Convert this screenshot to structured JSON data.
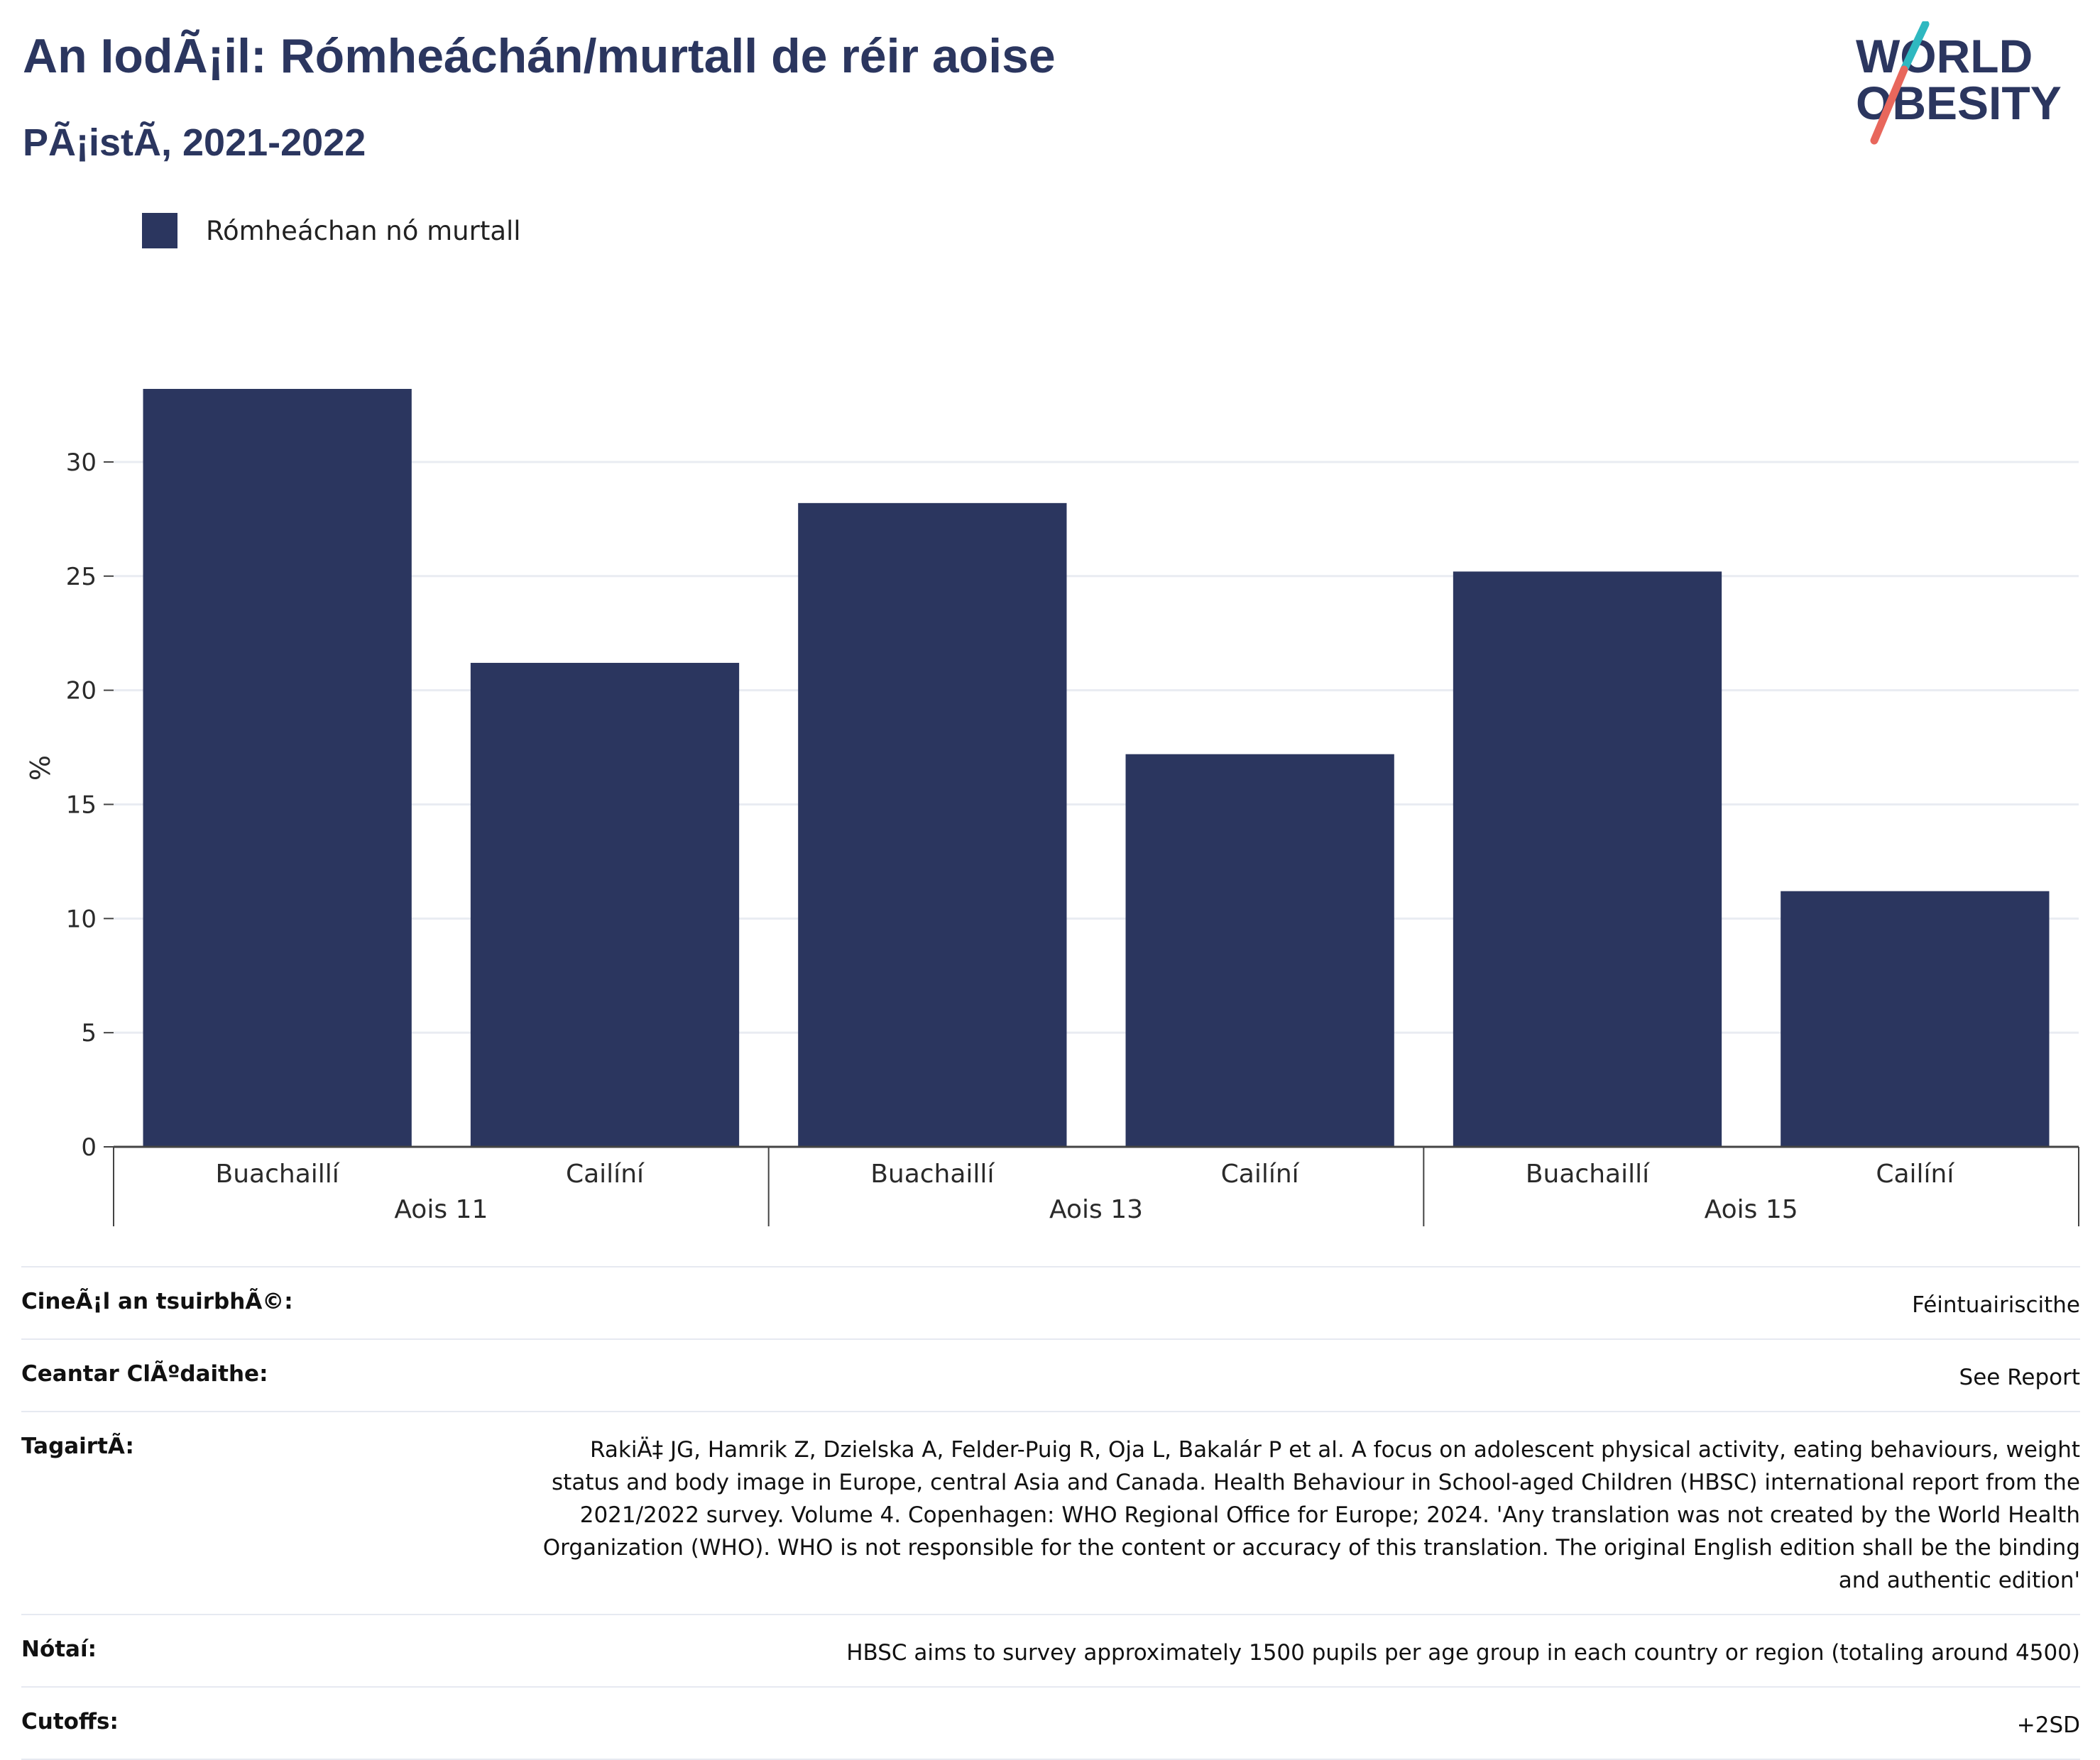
{
  "header": {
    "title": "An IodÃ¡il: Rómheáchán/murtall de réir aoise",
    "subtitle": "PÃ¡istÃ, 2021-2022"
  },
  "logo": {
    "line1": "WORLD",
    "line2": "OBESITY",
    "colors": {
      "text": "#2b365f",
      "slash_top": "#2fb8c0",
      "slash_bottom": "#e8675c"
    }
  },
  "legend": {
    "label": "Rómheáchan nó murtall",
    "color": "#2b365f"
  },
  "chart_data": {
    "type": "bar",
    "ylabel": "%",
    "ylim": [
      0,
      33.2
    ],
    "yticks": [
      0,
      5,
      10,
      15,
      20,
      25,
      30
    ],
    "grid": true,
    "groups": [
      {
        "label": "Aois 11",
        "bars": [
          {
            "label": "Buachaillí",
            "value": 33.2
          },
          {
            "label": "Cailíní",
            "value": 21.2
          }
        ]
      },
      {
        "label": "Aois 13",
        "bars": [
          {
            "label": "Buachaillí",
            "value": 28.2
          },
          {
            "label": "Cailíní",
            "value": 17.2
          }
        ]
      },
      {
        "label": "Aois 15",
        "bars": [
          {
            "label": "Buachaillí",
            "value": 25.2
          },
          {
            "label": "Cailíní",
            "value": 11.2
          }
        ]
      }
    ],
    "series": [
      {
        "name": "Rómheáchan nó murtall",
        "color": "#2b365f"
      }
    ]
  },
  "meta": [
    {
      "label": "CineÃ¡l an tsuirbhÃ©:",
      "value": "Féintuairiscithe"
    },
    {
      "label": "Ceantar ClÃºdaithe:",
      "value": "See Report"
    },
    {
      "label": "TagairtÃ:",
      "value": "RakiÄ‡ JG, Hamrik Z, Dzielska A, Felder-Puig R, Oja L, Bakalár P et al. A focus on adolescent physical activity, eating behaviours, weight status and body image in Europe, central Asia and Canada. Health Behaviour in School-aged Children (HBSC) international report from the 2021/2022 survey. Volume 4. Copenhagen: WHO Regional Office for Europe; 2024. 'Any translation was not created by the World Health Organization (WHO). WHO is not responsible for the content or accuracy of this translation. The original English edition shall be the binding and authentic edition'"
    },
    {
      "label": "Nótaí:",
      "value": "HBSC aims to survey approximately 1500 pupils per age group in each country or region (totaling around 4500)"
    },
    {
      "label": "Cutoffs:",
      "value": "+2SD"
    }
  ]
}
